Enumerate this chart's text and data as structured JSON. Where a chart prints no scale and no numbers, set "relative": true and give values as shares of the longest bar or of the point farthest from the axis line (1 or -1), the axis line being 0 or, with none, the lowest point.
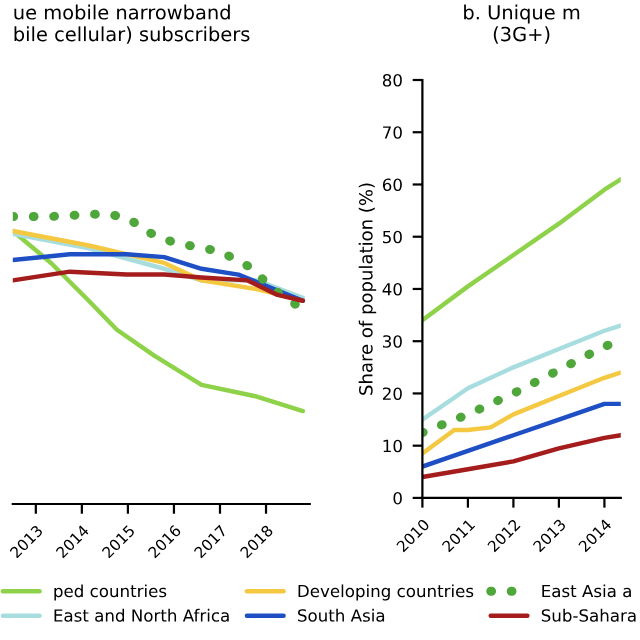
{
  "chart_data": [
    {
      "type": "line",
      "title": "ue mobile narrowband\nbile cellular) subscribers",
      "relative": true,
      "legend": "bottom",
      "grid": false,
      "xlim": [
        2012.5,
        2018.95
      ],
      "xticks": [
        2013,
        2014,
        2015,
        2016,
        2017,
        2018
      ],
      "series": [
        {
          "name": "ped countries",
          "color": "#8ed24a",
          "x": [
            2012.5,
            2013.33,
            2014.15,
            2014.76,
            2015.58,
            2016.6,
            2017.8,
            2018.8
          ],
          "values": [
            0.94,
            0.83,
            0.7,
            0.6,
            0.51,
            0.41,
            0.37,
            0.32
          ]
        },
        {
          "name": "East and North Africa",
          "color": "#a8dde0",
          "x": [
            2012.5,
            2014.15,
            2015.79,
            2016.6,
            2017.8,
            2018.8
          ],
          "values": [
            0.93,
            0.88,
            0.81,
            0.77,
            0.77,
            0.71
          ]
        },
        {
          "name": "Developing countries",
          "color": "#f5c842",
          "x": [
            2012.5,
            2014.15,
            2015.79,
            2016.6,
            2017.8,
            2018.8
          ],
          "values": [
            0.94,
            0.89,
            0.83,
            0.77,
            0.74,
            0.7
          ]
        },
        {
          "name": "South Asia",
          "color": "#1f4fc4",
          "x": [
            2012.5,
            2013.74,
            2014.97,
            2015.79,
            2016.6,
            2017.4,
            2018.8
          ],
          "values": [
            0.84,
            0.86,
            0.86,
            0.85,
            0.81,
            0.79,
            0.7
          ]
        },
        {
          "name": "East Asia a",
          "color": "#4fa63a",
          "line_style": "dotted",
          "x": [
            2012.5,
            2013.33,
            2014.56,
            2015.05,
            2015.38,
            2016.0,
            2017.0,
            2017.6,
            2018.25,
            2018.8
          ],
          "values": [
            0.99,
            0.99,
            1.0,
            0.98,
            0.94,
            0.9,
            0.87,
            0.82,
            0.73,
            0.67
          ]
        },
        {
          "name": "Sub-Sahara",
          "color": "#a51c1c",
          "x": [
            2012.5,
            2013.74,
            2014.97,
            2015.79,
            2016.6,
            2017.6,
            2018.25,
            2018.8
          ],
          "values": [
            0.77,
            0.8,
            0.79,
            0.79,
            0.78,
            0.77,
            0.72,
            0.7
          ]
        }
      ]
    },
    {
      "type": "line",
      "title": "b. Unique m\n(3G+)",
      "ylabel": "Share of population (%)",
      "grid": false,
      "xlim": [
        2010,
        2014.36
      ],
      "xticks": [
        2010,
        2011,
        2012,
        2013,
        2014
      ],
      "ylim": [
        0,
        80
      ],
      "yticks": [
        0,
        10,
        20,
        30,
        40,
        50,
        60,
        70,
        80
      ],
      "series": [
        {
          "color": "#8ed24a",
          "x": [
            2010,
            2011,
            2012,
            2013,
            2014,
            2014.36
          ],
          "values": [
            34,
            40.5,
            46.5,
            52.5,
            59,
            61
          ]
        },
        {
          "color": "#a8dde0",
          "x": [
            2010,
            2011,
            2012,
            2013,
            2014,
            2014.36
          ],
          "values": [
            15,
            21,
            25,
            28.5,
            32,
            33
          ]
        },
        {
          "color": "#f5c842",
          "x": [
            2010,
            2010.7,
            2011,
            2011.5,
            2012,
            2013,
            2014,
            2014.36
          ],
          "values": [
            8.5,
            13,
            13,
            13.5,
            16,
            19.5,
            23,
            24
          ]
        },
        {
          "color": "#1f4fc4",
          "x": [
            2010,
            2011,
            2012,
            2013,
            2014,
            2014.36
          ],
          "values": [
            6,
            9,
            12,
            15,
            18,
            18
          ]
        },
        {
          "color": "#4fa63a",
          "line_style": "dotted",
          "x": [
            2010,
            2011,
            2012,
            2013,
            2014,
            2014.36
          ],
          "values": [
            12.5,
            16,
            20,
            24.5,
            29,
            30
          ]
        },
        {
          "color": "#a51c1c",
          "x": [
            2010,
            2011,
            2012,
            2013,
            2014,
            2014.36
          ],
          "values": [
            4,
            5.5,
            7,
            9.5,
            11.5,
            12
          ]
        }
      ]
    }
  ]
}
